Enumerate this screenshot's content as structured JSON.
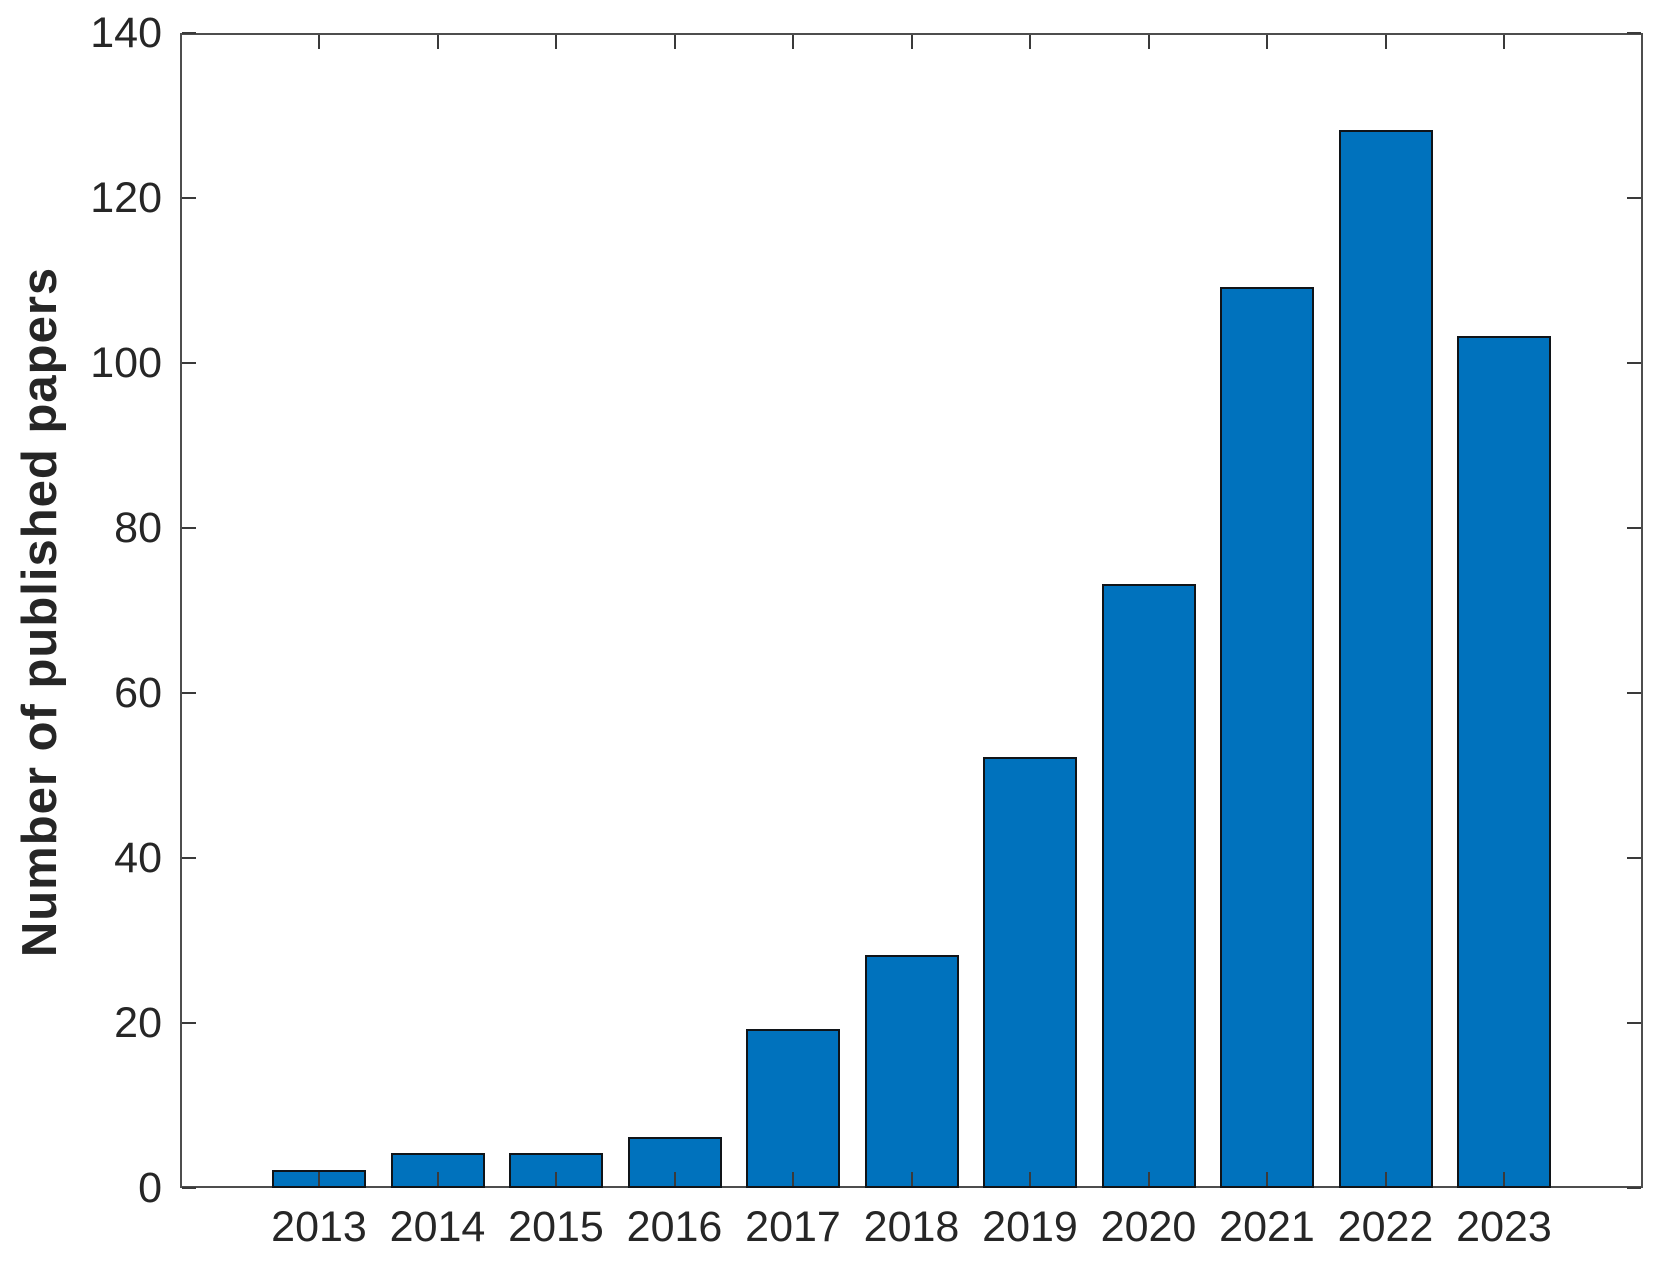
{
  "chart_data": {
    "type": "bar",
    "title": "",
    "xlabel": "",
    "ylabel": "Number of published papers",
    "categories": [
      "2013",
      "2014",
      "2015",
      "2016",
      "2017",
      "2018",
      "2019",
      "2020",
      "2021",
      "2022",
      "2023"
    ],
    "values": [
      2,
      4,
      4,
      6,
      19,
      28,
      52,
      73,
      109,
      128,
      103
    ],
    "yticks": [
      0,
      20,
      40,
      60,
      80,
      100,
      120,
      140
    ],
    "ylim": [
      0,
      140
    ],
    "grid": false,
    "legend_position": "none",
    "box": true,
    "tick_direction": "in",
    "bar_width_frac": 0.8,
    "colors": {
      "bar_fill": "#0072BD",
      "bar_edge": "#101418",
      "axis_line": "#4d4d4d",
      "tick_mark": "#3a3a3a",
      "text": "#262626",
      "background": "#ffffff"
    }
  }
}
